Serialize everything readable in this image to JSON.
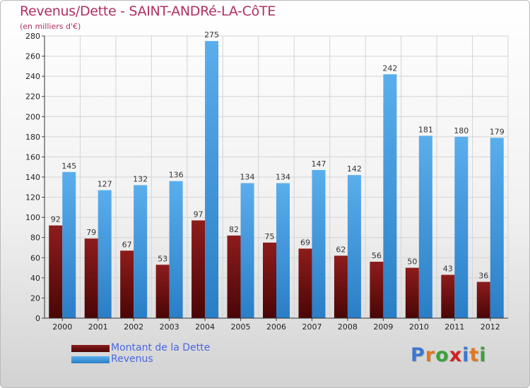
{
  "header": {
    "title": "Revenus/Dette - SAINT-ANDRé-LA-CôTE",
    "subtitle": "(en milliers d'€)"
  },
  "legend": {
    "items": [
      "Montant de la Dette",
      "Revenus"
    ]
  },
  "logo": {
    "text": "Proxiti",
    "letter_colors": [
      "#3a78d0",
      "#e07820",
      "#3aa03a",
      "#d02020",
      "#3a78d0",
      "#e07820",
      "#3aa03a"
    ]
  },
  "colors": {
    "dette": "#7a1616",
    "revenus": "#3d96dd",
    "title": "#b03060",
    "legend_text": "#4a66e0"
  },
  "chart_data": {
    "type": "bar",
    "title": "Revenus/Dette - SAINT-ANDRé-LA-CôTE",
    "subtitle": "(en milliers d'€)",
    "categories": [
      "2000",
      "2001",
      "2002",
      "2003",
      "2004",
      "2005",
      "2006",
      "2007",
      "2008",
      "2009",
      "2010",
      "2011",
      "2012"
    ],
    "series": [
      {
        "name": "Montant de la Dette",
        "values": [
          92,
          79,
          67,
          53,
          97,
          82,
          75,
          69,
          62,
          56,
          50,
          43,
          36
        ]
      },
      {
        "name": "Revenus",
        "values": [
          145,
          127,
          132,
          136,
          275,
          134,
          134,
          147,
          142,
          242,
          181,
          180,
          179
        ]
      }
    ],
    "ylim": [
      0,
      280
    ],
    "yticks": [
      0,
      20,
      40,
      60,
      80,
      100,
      120,
      140,
      160,
      180,
      200,
      220,
      240,
      260,
      280
    ],
    "grid": true,
    "legend_position": "bottom-left"
  }
}
